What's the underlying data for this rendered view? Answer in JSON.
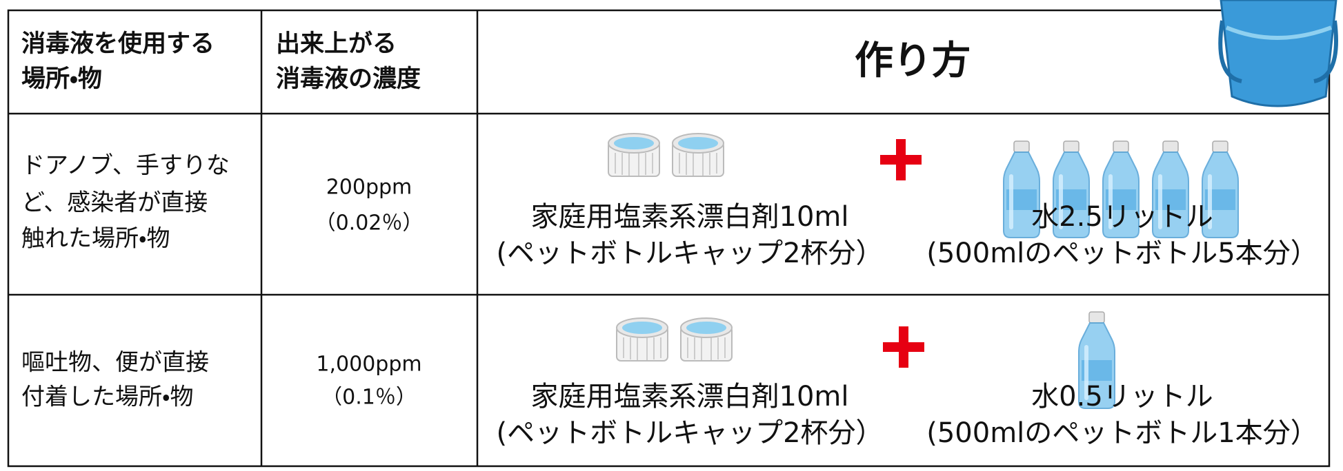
{
  "table": {
    "header": [
      [
        "消毒液を使用する",
        "場所・物"
      ],
      [
        "出来上がる",
        "消毒液の濃度"
      ],
      [
        "作り方"
      ]
    ],
    "rows": [
      {
        "place": [
          "ドアノブ、手すりな",
          "ど、感染者が直接",
          "触れた場所・物"
        ],
        "concentration": [
          "200ppm",
          "（0.02％）"
        ],
        "bleach": [
          "家庭用塩素系漂白剤10ml",
          "(ペットボトルキャップ2杯分）"
        ],
        "water": [
          "水2.5リットル",
          "(500mlのペットボトル5本分）"
        ]
      },
      {
        "place": [
          "嘔吐物、便が直接",
          "付着した場所・物"
        ],
        "concentration": [
          "1,000ppm",
          "（0.1％）"
        ],
        "bleach": [
          "家庭用塩素系漂白剤10ml",
          "(ペットボトルキャップ2杯分）"
        ],
        "water": [
          "水0.5リットル",
          "(500mlのペットボトル1本分）"
        ]
      }
    ]
  }
}
